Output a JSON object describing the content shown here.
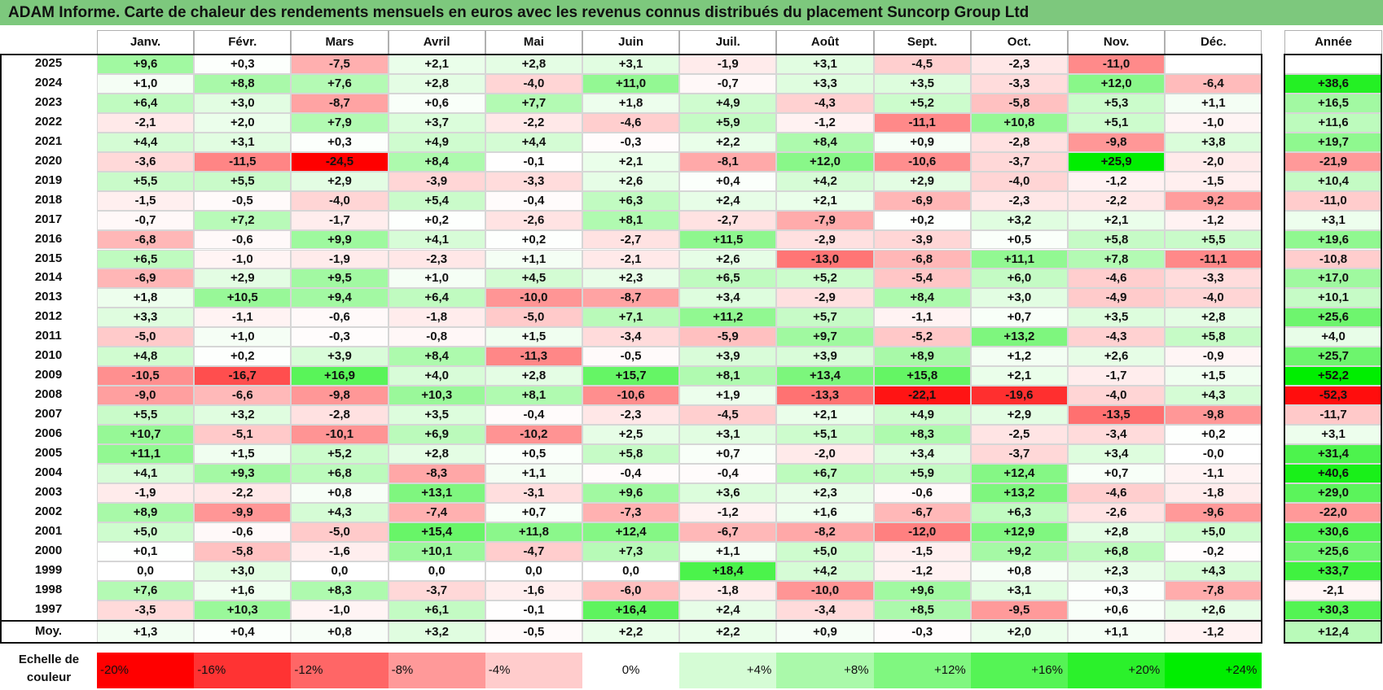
{
  "title": "ADAM Informe. Carte de chaleur des rendements mensuels en euros avec les revenus connus distribués du placement Suncorp Group Ltd",
  "chart_data": {
    "type": "heatmap",
    "title": "ADAM Informe. Carte de chaleur des rendements mensuels en euros avec les revenus connus distribués du placement Suncorp Group Ltd",
    "months": [
      "Janv.",
      "Févr.",
      "Mars",
      "Avril",
      "Mai",
      "Juin",
      "Juil.",
      "Août",
      "Sept.",
      "Oct.",
      "Nov.",
      "Déc."
    ],
    "year_header": "Année",
    "rows": [
      {
        "year": "2025",
        "values": [
          "+9,6",
          "+0,3",
          "-7,5",
          "+2,1",
          "+2,8",
          "+3,1",
          "-1,9",
          "+3,1",
          "-4,5",
          "-2,3",
          "-11,0",
          ""
        ],
        "annual": ""
      },
      {
        "year": "2024",
        "values": [
          "+1,0",
          "+8,8",
          "+7,6",
          "+2,8",
          "-4,0",
          "+11,0",
          "-0,7",
          "+3,3",
          "+3,5",
          "-3,3",
          "+12,0",
          "-6,4"
        ],
        "annual": "+38,6"
      },
      {
        "year": "2023",
        "values": [
          "+6,4",
          "+3,0",
          "-8,7",
          "+0,6",
          "+7,7",
          "+1,8",
          "+4,9",
          "-4,3",
          "+5,2",
          "-5,8",
          "+5,3",
          "+1,1"
        ],
        "annual": "+16,5"
      },
      {
        "year": "2022",
        "values": [
          "-2,1",
          "+2,0",
          "+7,9",
          "+3,7",
          "-2,2",
          "-4,6",
          "+5,9",
          "-1,2",
          "-11,1",
          "+10,8",
          "+5,1",
          "-1,0"
        ],
        "annual": "+11,6"
      },
      {
        "year": "2021",
        "values": [
          "+4,4",
          "+3,1",
          "+0,3",
          "+4,9",
          "+4,4",
          "-0,3",
          "+2,2",
          "+8,4",
          "+0,9",
          "-2,8",
          "-9,8",
          "+3,8"
        ],
        "annual": "+19,7"
      },
      {
        "year": "2020",
        "values": [
          "-3,6",
          "-11,5",
          "-24,5",
          "+8,4",
          "-0,1",
          "+2,1",
          "-8,1",
          "+12,0",
          "-10,6",
          "-3,7",
          "+25,9",
          "-2,0"
        ],
        "annual": "-21,9"
      },
      {
        "year": "2019",
        "values": [
          "+5,5",
          "+5,5",
          "+2,9",
          "-3,9",
          "-3,3",
          "+2,6",
          "+0,4",
          "+4,2",
          "+2,9",
          "-4,0",
          "-1,2",
          "-1,5"
        ],
        "annual": "+10,4"
      },
      {
        "year": "2018",
        "values": [
          "-1,5",
          "-0,5",
          "-4,0",
          "+5,4",
          "-0,4",
          "+6,3",
          "+2,4",
          "+2,1",
          "-6,9",
          "-2,3",
          "-2,2",
          "-9,2"
        ],
        "annual": "-11,0"
      },
      {
        "year": "2017",
        "values": [
          "-0,7",
          "+7,2",
          "-1,7",
          "+0,2",
          "-2,6",
          "+8,1",
          "-2,7",
          "-7,9",
          "+0,2",
          "+3,2",
          "+2,1",
          "-1,2"
        ],
        "annual": "+3,1"
      },
      {
        "year": "2016",
        "values": [
          "-6,8",
          "-0,6",
          "+9,9",
          "+4,1",
          "+0,2",
          "-2,7",
          "+11,5",
          "-2,9",
          "-3,9",
          "+0,5",
          "+5,8",
          "+5,5"
        ],
        "annual": "+19,6"
      },
      {
        "year": "2015",
        "values": [
          "+6,5",
          "-1,0",
          "-1,9",
          "-2,3",
          "+1,1",
          "-2,1",
          "+2,6",
          "-13,0",
          "-6,8",
          "+11,1",
          "+7,8",
          "-11,1"
        ],
        "annual": "-10,8"
      },
      {
        "year": "2014",
        "values": [
          "-6,9",
          "+2,9",
          "+9,5",
          "+1,0",
          "+4,5",
          "+2,3",
          "+6,5",
          "+5,2",
          "-5,4",
          "+6,0",
          "-4,6",
          "-3,3"
        ],
        "annual": "+17,0"
      },
      {
        "year": "2013",
        "values": [
          "+1,8",
          "+10,5",
          "+9,4",
          "+6,4",
          "-10,0",
          "-8,7",
          "+3,4",
          "-2,9",
          "+8,4",
          "+3,0",
          "-4,9",
          "-4,0"
        ],
        "annual": "+10,1"
      },
      {
        "year": "2012",
        "values": [
          "+3,3",
          "-1,1",
          "-0,6",
          "-1,8",
          "-5,0",
          "+7,1",
          "+11,2",
          "+5,7",
          "-1,1",
          "+0,7",
          "+3,5",
          "+2,8"
        ],
        "annual": "+25,6"
      },
      {
        "year": "2011",
        "values": [
          "-5,0",
          "+1,0",
          "-0,3",
          "-0,8",
          "+1,5",
          "-3,4",
          "-5,9",
          "+9,7",
          "-5,2",
          "+13,2",
          "-4,3",
          "+5,8"
        ],
        "annual": "+4,0"
      },
      {
        "year": "2010",
        "values": [
          "+4,8",
          "+0,2",
          "+3,9",
          "+8,4",
          "-11,3",
          "-0,5",
          "+3,9",
          "+3,9",
          "+8,9",
          "+1,2",
          "+2,6",
          "-0,9"
        ],
        "annual": "+25,7"
      },
      {
        "year": "2009",
        "values": [
          "-10,5",
          "-16,7",
          "+16,9",
          "+4,0",
          "+2,8",
          "+15,7",
          "+8,1",
          "+13,4",
          "+15,8",
          "+2,1",
          "-1,7",
          "+1,5"
        ],
        "annual": "+52,2"
      },
      {
        "year": "2008",
        "values": [
          "-9,0",
          "-6,6",
          "-9,8",
          "+10,3",
          "+8,1",
          "-10,6",
          "+1,9",
          "-13,3",
          "-22,1",
          "-19,6",
          "-4,0",
          "+4,3"
        ],
        "annual": "-52,3"
      },
      {
        "year": "2007",
        "values": [
          "+5,5",
          "+3,2",
          "-2,8",
          "+3,5",
          "-0,4",
          "-2,3",
          "-4,5",
          "+2,1",
          "+4,9",
          "+2,9",
          "-13,5",
          "-9,8"
        ],
        "annual": "-11,7"
      },
      {
        "year": "2006",
        "values": [
          "+10,7",
          "-5,1",
          "-10,1",
          "+6,9",
          "-10,2",
          "+2,5",
          "+3,1",
          "+5,1",
          "+8,3",
          "-2,5",
          "-3,4",
          "+0,2"
        ],
        "annual": "+3,1"
      },
      {
        "year": "2005",
        "values": [
          "+11,1",
          "+1,5",
          "+5,2",
          "+2,8",
          "+0,5",
          "+5,8",
          "+0,7",
          "-2,0",
          "+3,4",
          "-3,7",
          "+3,4",
          "-0,0"
        ],
        "annual": "+31,4"
      },
      {
        "year": "2004",
        "values": [
          "+4,1",
          "+9,3",
          "+6,8",
          "-8,3",
          "+1,1",
          "-0,4",
          "-0,4",
          "+6,7",
          "+5,9",
          "+12,4",
          "+0,7",
          "-1,1"
        ],
        "annual": "+40,6"
      },
      {
        "year": "2003",
        "values": [
          "-1,9",
          "-2,2",
          "+0,8",
          "+13,1",
          "-3,1",
          "+9,6",
          "+3,6",
          "+2,3",
          "-0,6",
          "+13,2",
          "-4,6",
          "-1,8"
        ],
        "annual": "+29,0"
      },
      {
        "year": "2002",
        "values": [
          "+8,9",
          "-9,9",
          "+4,3",
          "-7,4",
          "+0,7",
          "-7,3",
          "-1,2",
          "+1,6",
          "-6,7",
          "+6,3",
          "-2,6",
          "-9,6"
        ],
        "annual": "-22,0"
      },
      {
        "year": "2001",
        "values": [
          "+5,0",
          "-0,6",
          "-5,0",
          "+15,4",
          "+11,8",
          "+12,4",
          "-6,7",
          "-8,2",
          "-12,0",
          "+12,9",
          "+2,8",
          "+5,0"
        ],
        "annual": "+30,6"
      },
      {
        "year": "2000",
        "values": [
          "+0,1",
          "-5,8",
          "-1,6",
          "+10,1",
          "-4,7",
          "+7,3",
          "+1,1",
          "+5,0",
          "-1,5",
          "+9,2",
          "+6,8",
          "-0,2"
        ],
        "annual": "+25,6"
      },
      {
        "year": "1999",
        "values": [
          "0,0",
          "+3,0",
          "0,0",
          "0,0",
          "0,0",
          "0,0",
          "+18,4",
          "+4,2",
          "-1,2",
          "+0,8",
          "+2,3",
          "+4,3"
        ],
        "annual": "+33,7"
      },
      {
        "year": "1998",
        "values": [
          "+7,6",
          "+1,6",
          "+8,3",
          "-3,7",
          "-1,6",
          "-6,0",
          "-1,8",
          "-10,0",
          "+9,6",
          "+3,1",
          "+0,3",
          "-7,8"
        ],
        "annual": "-2,1"
      },
      {
        "year": "1997",
        "values": [
          "-3,5",
          "+10,3",
          "-1,0",
          "+6,1",
          "-0,1",
          "+16,4",
          "+2,4",
          "-3,4",
          "+8,5",
          "-9,5",
          "+0,6",
          "+2,6"
        ],
        "annual": "+30,3"
      }
    ],
    "average": {
      "label": "Moy.",
      "values": [
        "+1,3",
        "+0,4",
        "+0,8",
        "+3,2",
        "-0,5",
        "+2,2",
        "+2,2",
        "+0,9",
        "-0,3",
        "+2,0",
        "+1,1",
        "-1,2"
      ],
      "annual": "+12,4"
    },
    "color_scale": {
      "label": "Echelle de couleur",
      "stops": [
        "-20%",
        "-16%",
        "-12%",
        "-8%",
        "-4%",
        "0%",
        "+4%",
        "+8%",
        "+12%",
        "+16%",
        "+20%",
        "+24%"
      ],
      "negative_color": "#ff0000",
      "positive_color": "#00ee00",
      "neutral_color": "#ffffff"
    }
  }
}
